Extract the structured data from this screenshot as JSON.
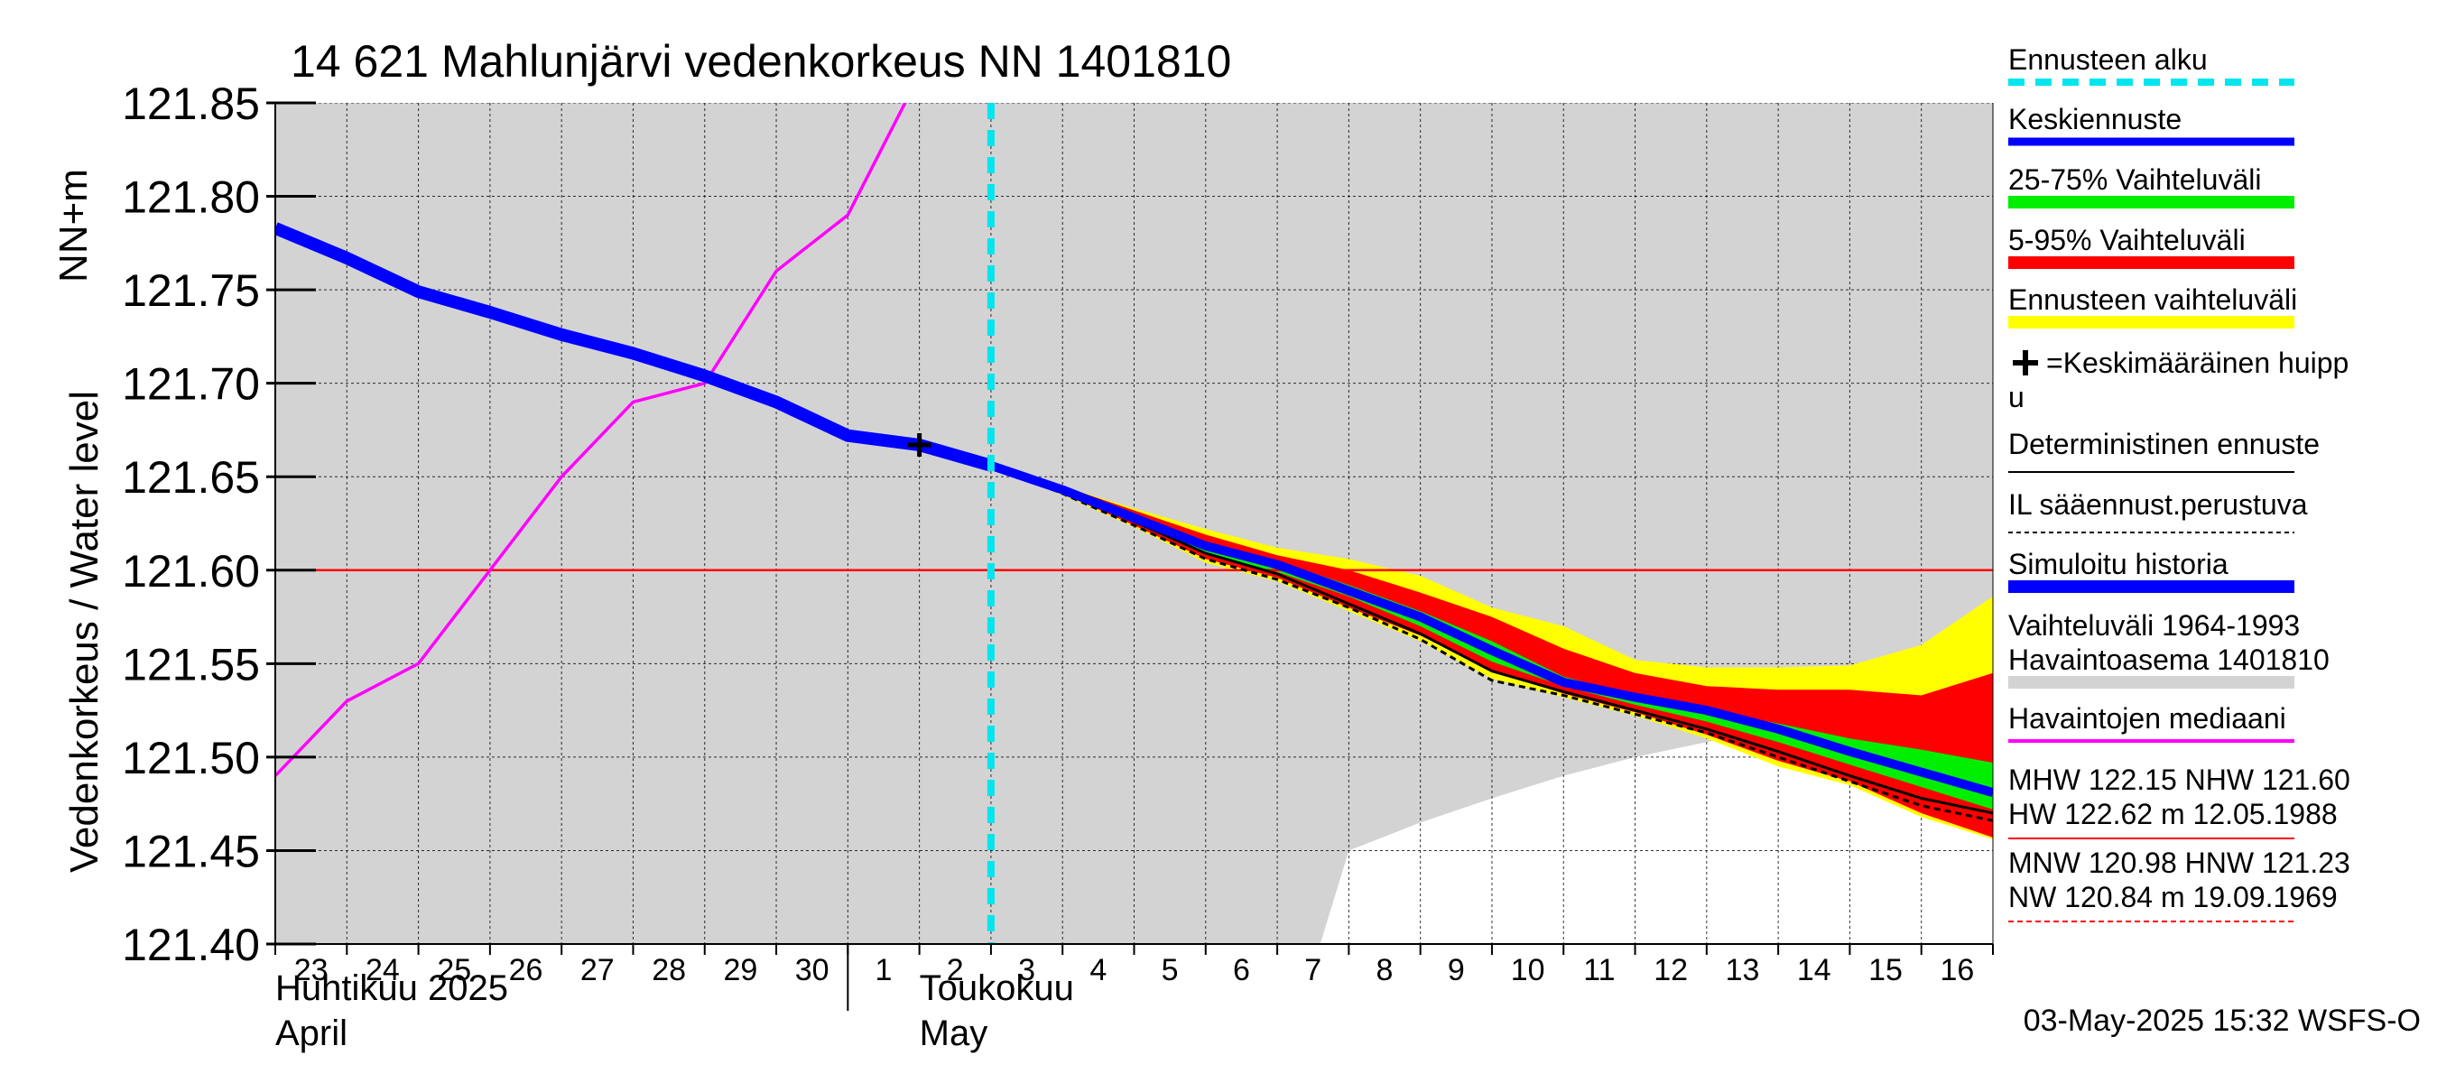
{
  "chart_data": {
    "type": "line",
    "title": "14 621 Mahlunjärvi vedenkorkeus NN 1401810",
    "ylabel_left": "Vedenkorkeus / Water level",
    "ylabel_unit": "NN+m",
    "ylim": [
      121.4,
      121.85
    ],
    "yticks": [
      "121.40",
      "121.45",
      "121.50",
      "121.55",
      "121.60",
      "121.65",
      "121.70",
      "121.75",
      "121.80",
      "121.85"
    ],
    "xlim": [
      0,
      24
    ],
    "day_labels": [
      "23",
      "24",
      "25",
      "26",
      "27",
      "28",
      "29",
      "30",
      "1",
      "2",
      "3",
      "4",
      "5",
      "6",
      "7",
      "8",
      "9",
      "10",
      "11",
      "12",
      "13",
      "14",
      "15",
      "16"
    ],
    "month_labels": [
      {
        "line1": "Huhtikuu  2025",
        "line2": "April"
      },
      {
        "line1": "Toukokuu",
        "line2": "May"
      }
    ],
    "forecast_start_x": 10,
    "reference_level": 121.6,
    "peak_marker": {
      "x": 9,
      "y": 121.667
    },
    "history_range": {
      "upper": [
        [
          0,
          121.85
        ],
        [
          24,
          121.85
        ]
      ],
      "lower": [
        [
          0,
          121.4
        ],
        [
          14.6,
          121.4
        ],
        [
          15,
          121.45
        ],
        [
          16,
          121.465
        ],
        [
          17,
          121.478
        ],
        [
          18,
          121.49
        ],
        [
          19,
          121.5
        ],
        [
          20,
          121.508
        ],
        [
          21,
          121.516
        ],
        [
          22,
          121.526
        ],
        [
          23,
          121.538
        ],
        [
          24,
          121.548
        ]
      ]
    },
    "observed_median": [
      [
        0,
        121.49
      ],
      [
        1,
        121.53
      ],
      [
        2,
        121.55
      ],
      [
        3,
        121.6
      ],
      [
        4,
        121.65
      ],
      [
        5,
        121.69
      ],
      [
        6,
        121.7
      ],
      [
        7,
        121.76
      ],
      [
        8,
        121.79
      ],
      [
        8.8,
        121.85
      ]
    ],
    "simulated_history": [
      [
        0,
        121.783
      ],
      [
        1,
        121.767
      ],
      [
        2,
        121.749
      ],
      [
        3,
        121.738
      ],
      [
        4,
        121.726
      ],
      [
        5,
        121.716
      ],
      [
        6,
        121.704
      ],
      [
        7,
        121.69
      ],
      [
        8,
        121.672
      ],
      [
        9,
        121.667
      ],
      [
        10,
        121.656
      ]
    ],
    "forecast_range": {
      "upper": [
        [
          10,
          121.656
        ],
        [
          11,
          121.645
        ],
        [
          12,
          121.633
        ],
        [
          13,
          121.622
        ],
        [
          14,
          121.612
        ],
        [
          15,
          121.606
        ],
        [
          16,
          121.597
        ],
        [
          17,
          121.58
        ],
        [
          18,
          121.57
        ],
        [
          19,
          121.552
        ],
        [
          20,
          121.548
        ],
        [
          21,
          121.548
        ],
        [
          22,
          121.549
        ],
        [
          23,
          121.56
        ],
        [
          24,
          121.586
        ]
      ],
      "lower": [
        [
          10,
          121.656
        ],
        [
          11,
          121.64
        ],
        [
          12,
          121.623
        ],
        [
          13,
          121.604
        ],
        [
          14,
          121.594
        ],
        [
          15,
          121.578
        ],
        [
          16,
          121.562
        ],
        [
          17,
          121.542
        ],
        [
          18,
          121.532
        ],
        [
          19,
          121.522
        ],
        [
          20,
          121.51
        ],
        [
          21,
          121.495
        ],
        [
          22,
          121.485
        ],
        [
          23,
          121.468
        ],
        [
          24,
          121.456
        ]
      ]
    },
    "p5_95": {
      "upper": [
        [
          10,
          121.656
        ],
        [
          11,
          121.645
        ],
        [
          12,
          121.632
        ],
        [
          13,
          121.619
        ],
        [
          14,
          121.608
        ],
        [
          15,
          121.6
        ],
        [
          16,
          121.588
        ],
        [
          17,
          121.575
        ],
        [
          18,
          121.558
        ],
        [
          19,
          121.545
        ],
        [
          20,
          121.538
        ],
        [
          21,
          121.536
        ],
        [
          22,
          121.536
        ],
        [
          23,
          121.533
        ],
        [
          24,
          121.545
        ]
      ],
      "lower": [
        [
          10,
          121.656
        ],
        [
          11,
          121.641
        ],
        [
          12,
          121.624
        ],
        [
          13,
          121.606
        ],
        [
          14,
          121.596
        ],
        [
          15,
          121.58
        ],
        [
          16,
          121.565
        ],
        [
          17,
          121.546
        ],
        [
          18,
          121.534
        ],
        [
          19,
          121.524
        ],
        [
          20,
          121.512
        ],
        [
          21,
          121.498
        ],
        [
          22,
          121.487
        ],
        [
          23,
          121.47
        ],
        [
          24,
          121.457
        ]
      ]
    },
    "p25_75": {
      "upper": [
        [
          10,
          121.656
        ],
        [
          11,
          121.643
        ],
        [
          12,
          121.629
        ],
        [
          13,
          121.615
        ],
        [
          14,
          121.605
        ],
        [
          15,
          121.592
        ],
        [
          16,
          121.578
        ],
        [
          17,
          121.562
        ],
        [
          18,
          121.543
        ],
        [
          19,
          121.533
        ],
        [
          20,
          121.525
        ],
        [
          21,
          121.518
        ],
        [
          22,
          121.51
        ],
        [
          23,
          121.504
        ],
        [
          24,
          121.497
        ]
      ],
      "lower": [
        [
          10,
          121.656
        ],
        [
          11,
          121.642
        ],
        [
          12,
          121.626
        ],
        [
          13,
          121.609
        ],
        [
          14,
          121.599
        ],
        [
          15,
          121.586
        ],
        [
          16,
          121.57
        ],
        [
          17,
          121.551
        ],
        [
          18,
          121.538
        ],
        [
          19,
          121.528
        ],
        [
          20,
          121.519
        ],
        [
          21,
          121.508
        ],
        [
          22,
          121.496
        ],
        [
          23,
          121.484
        ],
        [
          24,
          121.472
        ]
      ]
    },
    "median_forecast": [
      [
        10,
        121.656
      ],
      [
        11,
        121.643
      ],
      [
        12,
        121.628
      ],
      [
        13,
        121.613
      ],
      [
        14,
        121.603
      ],
      [
        15,
        121.589
      ],
      [
        16,
        121.575
      ],
      [
        17,
        121.557
      ],
      [
        18,
        121.54
      ],
      [
        19,
        121.532
      ],
      [
        20,
        121.525
      ],
      [
        21,
        121.515
      ],
      [
        22,
        121.503
      ],
      [
        23,
        121.492
      ],
      [
        24,
        121.481
      ]
    ],
    "deterministic": [
      [
        10,
        121.656
      ],
      [
        11,
        121.642
      ],
      [
        12,
        121.626
      ],
      [
        13,
        121.609
      ],
      [
        14,
        121.598
      ],
      [
        15,
        121.582
      ],
      [
        16,
        121.566
      ],
      [
        17,
        121.546
      ],
      [
        18,
        121.535
      ],
      [
        19,
        121.525
      ],
      [
        20,
        121.515
      ],
      [
        21,
        121.503
      ],
      [
        22,
        121.49
      ],
      [
        23,
        121.478
      ],
      [
        24,
        121.47
      ]
    ],
    "il_forecast": [
      [
        10,
        121.656
      ],
      [
        11,
        121.641
      ],
      [
        12,
        121.624
      ],
      [
        13,
        121.606
      ],
      [
        14,
        121.595
      ],
      [
        15,
        121.58
      ],
      [
        16,
        121.563
      ],
      [
        17,
        121.541
      ],
      [
        18,
        121.533
      ],
      [
        19,
        121.523
      ],
      [
        20,
        121.513
      ],
      [
        21,
        121.5
      ],
      [
        22,
        121.487
      ],
      [
        23,
        121.474
      ],
      [
        24,
        121.466
      ]
    ],
    "colors": {
      "background": "#d3d3d3",
      "forecast_start": "#00e5ee",
      "median_forecast": "#0000ff",
      "p25_75": "#00ee00",
      "p5_95": "#ff0000",
      "forecast_range": "#ffff00",
      "observed_median": "#ff00ff",
      "simulated_history": "#0000ff",
      "reference_line": "#ff0000",
      "grid": "#000000"
    },
    "legend": [
      {
        "id": "forecast-start",
        "text": "Ennusteen alku"
      },
      {
        "id": "median-forecast",
        "text": "Keskiennuste"
      },
      {
        "id": "p25-75",
        "text": "25-75% Vaihteluväli"
      },
      {
        "id": "p5-95",
        "text": "5-95% Vaihteluväli"
      },
      {
        "id": "forecast-range",
        "text": "Ennusteen vaihteluväli"
      },
      {
        "id": "peak",
        "text": "=Keskimääräinen huipp",
        "text2": "u"
      },
      {
        "id": "deterministic",
        "text": "Deterministinen ennuste"
      },
      {
        "id": "il",
        "text": "IL sääennust.perustuva"
      },
      {
        "id": "simulated",
        "text": "Simuloitu historia"
      },
      {
        "id": "history-range",
        "text": "Vaihteluväli 1964-1993",
        "text2": " Havaintoasema 1401810"
      },
      {
        "id": "observed-median",
        "text": "Havaintojen mediaani"
      },
      {
        "id": "hw",
        "text": "MHW 122.15 NHW 121.60",
        "text2": "HW 122.62 m 12.05.1988"
      },
      {
        "id": "nw",
        "text": "MNW 120.98 HNW 121.23",
        "text2": "NW 120.84 m 19.09.1969"
      }
    ],
    "timestamp": "03-May-2025 15:32 WSFS-O"
  }
}
